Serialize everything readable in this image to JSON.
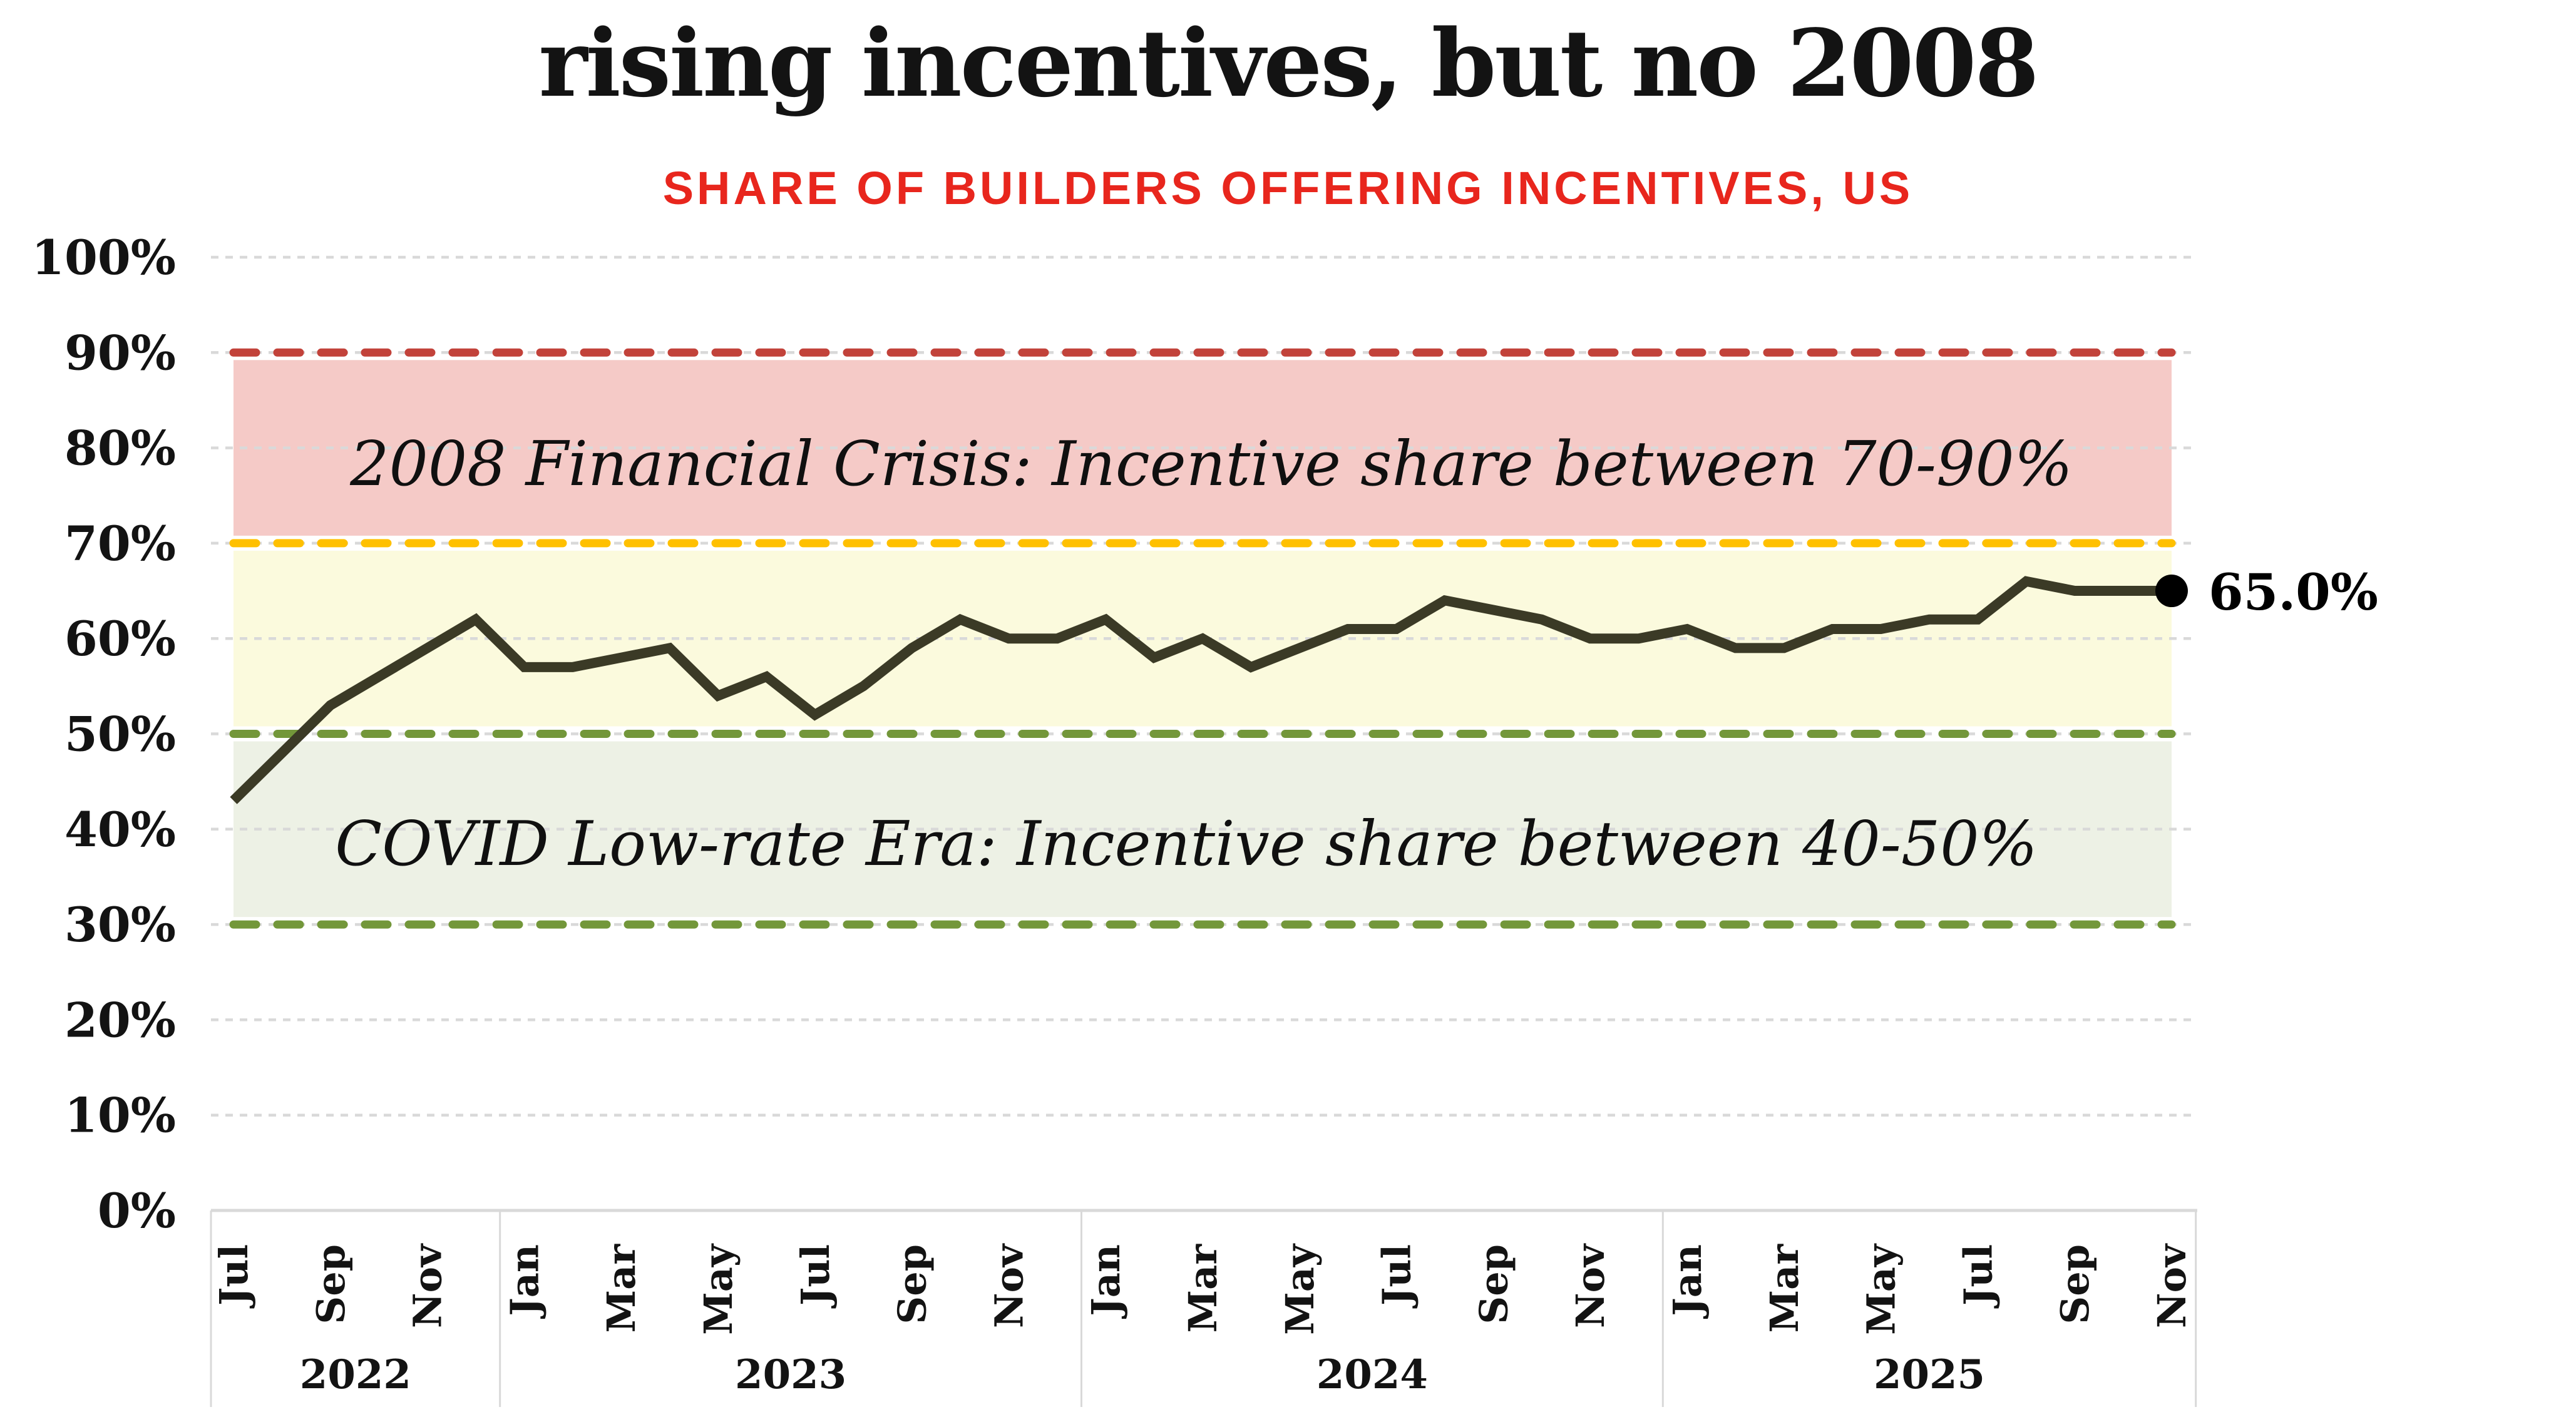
{
  "header": {
    "title": "rising incentives, but no 2008",
    "subtitle": "SHARE OF BUILDERS OFFERING INCENTIVES, US"
  },
  "chart_data": {
    "type": "line",
    "title": "rising incentives, but no 2008",
    "subtitle": "SHARE OF BUILDERS OFFERING INCENTIVES, US",
    "ylim": [
      0,
      100
    ],
    "ytick_labels": [
      "0%",
      "10%",
      "20%",
      "30%",
      "40%",
      "50%",
      "60%",
      "70%",
      "80%",
      "90%",
      "100%"
    ],
    "grid": "horizontal-dashed",
    "legend_position": "none",
    "x_months": [
      "Jul",
      "Aug",
      "Sep",
      "Oct",
      "Nov",
      "Dec",
      "Jan",
      "Feb",
      "Mar",
      "Apr",
      "May",
      "Jun",
      "Jul",
      "Aug",
      "Sep",
      "Oct",
      "Nov",
      "Dec",
      "Jan",
      "Feb",
      "Mar",
      "Apr",
      "May",
      "Jun",
      "Jul",
      "Aug",
      "Sep",
      "Oct",
      "Nov",
      "Dec",
      "Jan",
      "Feb",
      "Mar",
      "Apr",
      "May",
      "Jun",
      "Jul",
      "Aug",
      "Sep",
      "Oct",
      "Nov"
    ],
    "xtick_label_step": 2,
    "years": [
      {
        "label": "2022",
        "month_count": 6
      },
      {
        "label": "2023",
        "month_count": 12
      },
      {
        "label": "2024",
        "month_count": 12
      },
      {
        "label": "2025",
        "month_count": 11
      }
    ],
    "series": [
      {
        "name": "Share of builders offering incentives",
        "color": "#3b3a26",
        "values": [
          43,
          48,
          53,
          56,
          59,
          62,
          57,
          57,
          58,
          59,
          54,
          56,
          52,
          55,
          59,
          62,
          60,
          60,
          62,
          58,
          60,
          57,
          59,
          61,
          61,
          64,
          63,
          62,
          60,
          60,
          61,
          59,
          59,
          61,
          61,
          62,
          62,
          66,
          65,
          65,
          65
        ]
      }
    ],
    "last_point_label": "65.0%",
    "bands": [
      {
        "range": [
          70,
          90
        ],
        "fill": "#f5cac7"
      },
      {
        "range": [
          50,
          70
        ],
        "fill": "#fbfadd"
      },
      {
        "range": [
          30,
          50
        ],
        "fill": "#edf1e5"
      }
    ],
    "dashed_lines": [
      {
        "value": 90,
        "color": "#c2423a"
      },
      {
        "value": 70,
        "color": "#ffc000"
      },
      {
        "value": 50,
        "color": "#73973a"
      },
      {
        "value": 30,
        "color": "#73973a"
      }
    ],
    "annotations": [
      {
        "text": "2008 Financial Crisis: Incentive share between 70-90%",
        "y_value": 78.5
      },
      {
        "text": "COVID Low-rate Era: Incentive share between 40-50%",
        "y_value": 38.5
      }
    ]
  },
  "colors": {
    "subtitle_red": "#e8261d",
    "series_line": "#3b3a26",
    "grid_gray": "#d9d9d9",
    "band_pink": "#f5cac7",
    "band_yellow": "#fbfadd",
    "band_green": "#edf1e5",
    "line_red": "#c2423a",
    "line_orange": "#ffc000",
    "line_olive": "#73973a",
    "end_dot": "#000000"
  }
}
